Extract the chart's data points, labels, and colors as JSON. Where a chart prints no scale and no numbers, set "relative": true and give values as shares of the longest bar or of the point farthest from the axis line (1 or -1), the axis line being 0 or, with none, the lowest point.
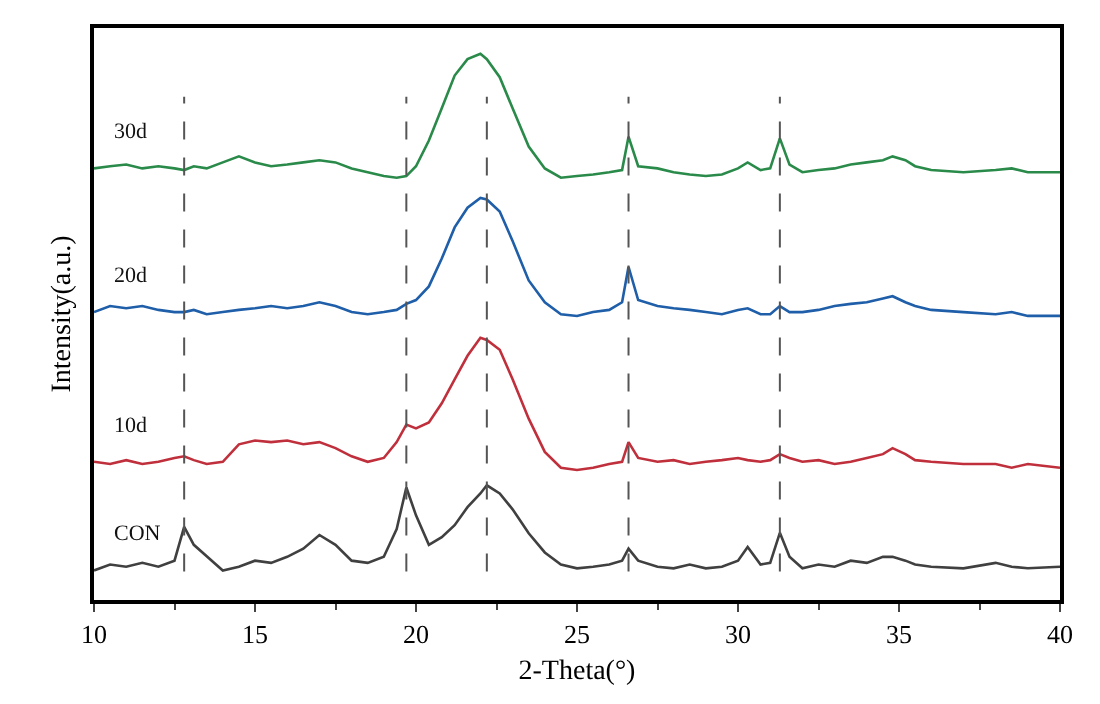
{
  "chart_data": {
    "type": "line",
    "relative": true,
    "xlabel": "2-Theta(°)",
    "ylabel": "Intensity(a.u.)",
    "x": [
      10,
      10.5,
      11,
      11.5,
      12,
      12.5,
      12.8,
      13.1,
      13.5,
      14,
      14.5,
      15,
      15.5,
      16,
      16.5,
      17,
      17.5,
      18,
      18.5,
      19,
      19.4,
      19.7,
      20,
      20.4,
      20.8,
      21.2,
      21.6,
      22,
      22.2,
      22.6,
      23,
      23.5,
      24,
      24.5,
      25,
      25.5,
      26,
      26.4,
      26.6,
      26.9,
      27.5,
      28,
      28.5,
      29,
      29.5,
      30,
      30.3,
      30.7,
      31,
      31.3,
      31.6,
      32,
      32.5,
      33,
      33.5,
      34,
      34.5,
      34.8,
      35.2,
      35.5,
      36,
      37,
      38,
      38.5,
      39,
      40
    ],
    "xlim": [
      10,
      40
    ],
    "xticks": [
      10,
      15,
      20,
      25,
      30,
      35,
      40
    ],
    "legend": false,
    "marker": "none",
    "line_style": "solid",
    "series": [
      {
        "name": "CON",
        "color": "#404040",
        "values": [
          0.054,
          0.065,
          0.061,
          0.068,
          0.061,
          0.072,
          0.134,
          0.101,
          0.08,
          0.054,
          0.061,
          0.072,
          0.068,
          0.079,
          0.094,
          0.119,
          0.101,
          0.072,
          0.068,
          0.079,
          0.13,
          0.206,
          0.155,
          0.101,
          0.115,
          0.137,
          0.17,
          0.195,
          0.21,
          0.195,
          0.166,
          0.122,
          0.087,
          0.065,
          0.058,
          0.061,
          0.065,
          0.072,
          0.094,
          0.072,
          0.061,
          0.058,
          0.065,
          0.058,
          0.061,
          0.072,
          0.097,
          0.065,
          0.068,
          0.123,
          0.079,
          0.058,
          0.065,
          0.061,
          0.072,
          0.068,
          0.079,
          0.079,
          0.072,
          0.065,
          0.061,
          0.058,
          0.068,
          0.061,
          0.058,
          0.061
        ]
      },
      {
        "name": "10d",
        "color": "#c0303c",
        "values": [
          0.253,
          0.249,
          0.256,
          0.249,
          0.253,
          0.26,
          0.263,
          0.256,
          0.249,
          0.253,
          0.285,
          0.292,
          0.289,
          0.292,
          0.285,
          0.289,
          0.278,
          0.263,
          0.253,
          0.26,
          0.289,
          0.321,
          0.314,
          0.325,
          0.36,
          0.404,
          0.447,
          0.48,
          0.476,
          0.458,
          0.404,
          0.332,
          0.271,
          0.242,
          0.238,
          0.242,
          0.249,
          0.253,
          0.289,
          0.26,
          0.253,
          0.256,
          0.249,
          0.253,
          0.256,
          0.26,
          0.256,
          0.253,
          0.256,
          0.267,
          0.26,
          0.253,
          0.256,
          0.249,
          0.253,
          0.26,
          0.267,
          0.278,
          0.267,
          0.256,
          0.253,
          0.249,
          0.249,
          0.242,
          0.249,
          0.242
        ]
      },
      {
        "name": "20d",
        "color": "#1f5ea8",
        "values": [
          0.527,
          0.538,
          0.534,
          0.538,
          0.531,
          0.527,
          0.527,
          0.531,
          0.523,
          0.527,
          0.531,
          0.534,
          0.538,
          0.534,
          0.538,
          0.545,
          0.538,
          0.527,
          0.523,
          0.527,
          0.531,
          0.542,
          0.549,
          0.574,
          0.625,
          0.682,
          0.718,
          0.736,
          0.733,
          0.711,
          0.657,
          0.585,
          0.545,
          0.523,
          0.52,
          0.527,
          0.531,
          0.545,
          0.61,
          0.549,
          0.538,
          0.534,
          0.531,
          0.527,
          0.523,
          0.531,
          0.534,
          0.523,
          0.523,
          0.538,
          0.527,
          0.527,
          0.531,
          0.538,
          0.542,
          0.545,
          0.552,
          0.556,
          0.545,
          0.538,
          0.531,
          0.527,
          0.523,
          0.527,
          0.52,
          0.52
        ]
      },
      {
        "name": "30d",
        "color": "#2a8a4a",
        "values": [
          0.79,
          0.794,
          0.797,
          0.79,
          0.794,
          0.79,
          0.787,
          0.794,
          0.79,
          0.801,
          0.812,
          0.801,
          0.794,
          0.797,
          0.801,
          0.805,
          0.801,
          0.79,
          0.783,
          0.776,
          0.773,
          0.776,
          0.794,
          0.841,
          0.9,
          0.96,
          0.99,
          1.0,
          0.99,
          0.957,
          0.9,
          0.83,
          0.79,
          0.773,
          0.776,
          0.779,
          0.783,
          0.787,
          0.848,
          0.794,
          0.79,
          0.783,
          0.779,
          0.776,
          0.779,
          0.79,
          0.801,
          0.787,
          0.79,
          0.845,
          0.797,
          0.783,
          0.787,
          0.79,
          0.797,
          0.801,
          0.805,
          0.812,
          0.805,
          0.794,
          0.787,
          0.783,
          0.787,
          0.79,
          0.783,
          0.783
        ]
      }
    ],
    "ref_lines": [
      {
        "axis": "x",
        "value": 12.8,
        "color": "#555555",
        "line_style": "dashed"
      },
      {
        "axis": "x",
        "value": 19.7,
        "color": "#555555",
        "line_style": "dashed"
      },
      {
        "axis": "x",
        "value": 22.2,
        "color": "#555555",
        "line_style": "dashed"
      },
      {
        "axis": "x",
        "value": 26.6,
        "color": "#555555",
        "line_style": "dashed"
      },
      {
        "axis": "x",
        "value": 31.3,
        "color": "#555555",
        "line_style": "dashed"
      }
    ]
  }
}
